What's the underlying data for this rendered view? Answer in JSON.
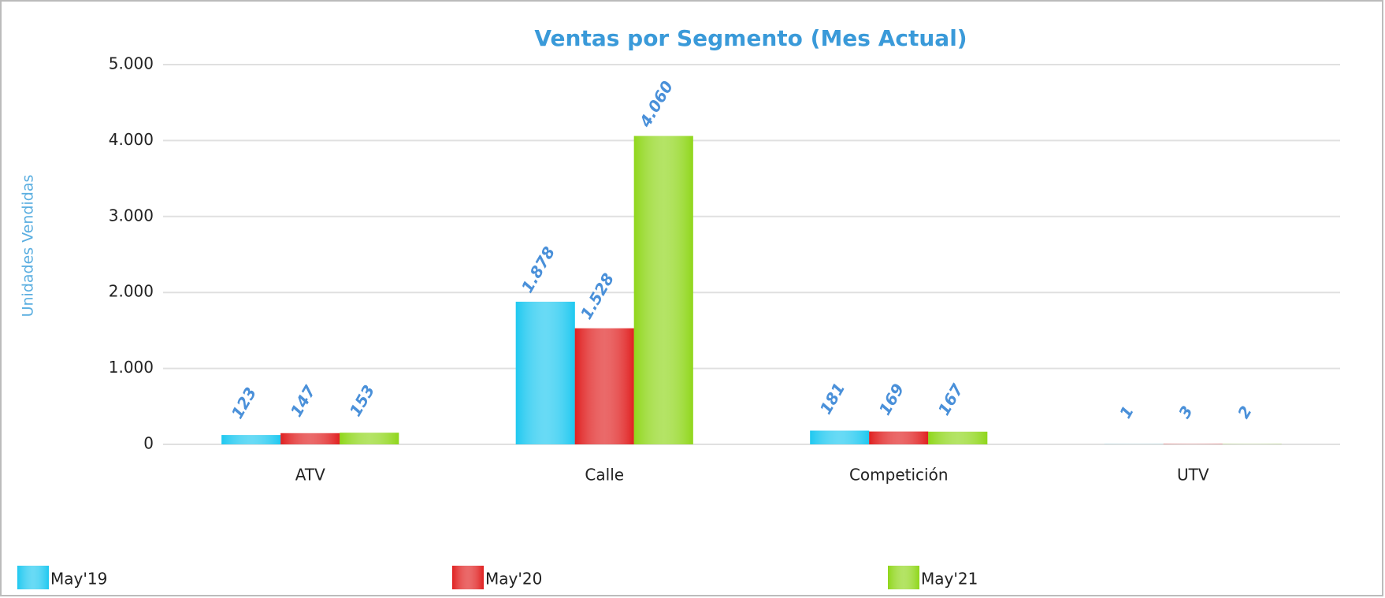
{
  "chart_data": {
    "type": "bar",
    "title": "Ventas por Segmento (Mes Actual)",
    "y_label": "Unidades Vendidas",
    "categories": [
      "ATV",
      "Calle",
      "Competición",
      "UTV"
    ],
    "series": [
      {
        "name": "May'19",
        "color": "#1ec8f0",
        "values": [
          123,
          1878,
          181,
          1
        ],
        "value_labels": [
          "123",
          "1.878",
          "181",
          "1"
        ]
      },
      {
        "name": "May'20",
        "color": "#e02020",
        "values": [
          147,
          1528,
          169,
          3
        ],
        "value_labels": [
          "147",
          "1.528",
          "169",
          "3"
        ]
      },
      {
        "name": "May'21",
        "color": "#8fd61a",
        "values": [
          153,
          4060,
          167,
          2
        ],
        "value_labels": [
          "153",
          "4.060",
          "167",
          "2"
        ]
      }
    ],
    "ylim": [
      0,
      5000
    ],
    "yticks": [
      0,
      {
        "value": 1000,
        "label": "1.000"
      },
      {
        "value": 2000,
        "label": "2.000"
      },
      {
        "value": 3000,
        "label": "3.000"
      },
      {
        "value": 4000,
        "label": "4.000"
      },
      {
        "value": 5000,
        "label": "5.000"
      }
    ],
    "grid": true,
    "legend": "bottom"
  }
}
